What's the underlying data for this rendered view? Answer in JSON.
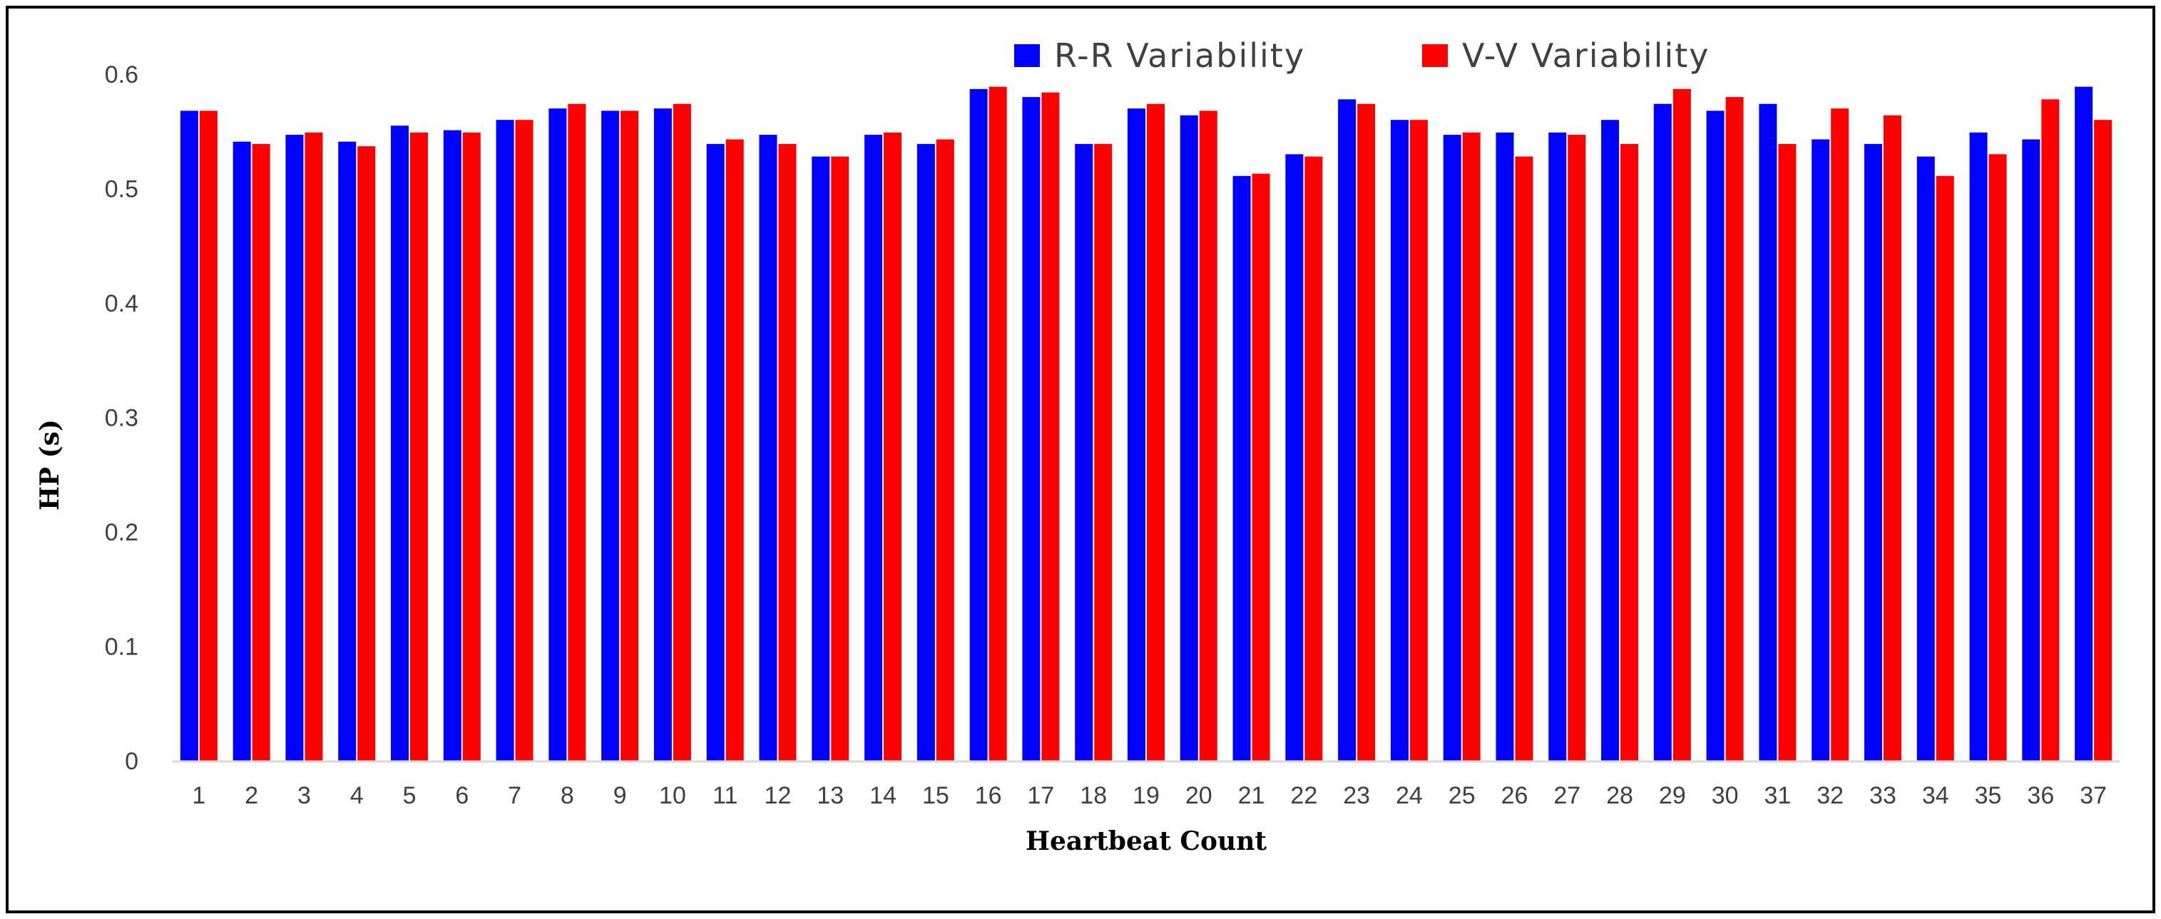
{
  "chart_data": {
    "type": "bar",
    "title": "",
    "xlabel": "Heartbeat Count",
    "ylabel": "HP (s)",
    "ylim": [
      0,
      0.6
    ],
    "yticks": [
      "0",
      "0.1",
      "0.2",
      "0.3",
      "0.4",
      "0.5",
      "0.6"
    ],
    "grid": false,
    "legend_position": "top-right",
    "categories": [
      "1",
      "2",
      "3",
      "4",
      "5",
      "6",
      "7",
      "8",
      "9",
      "10",
      "11",
      "12",
      "13",
      "14",
      "15",
      "16",
      "17",
      "18",
      "19",
      "20",
      "21",
      "22",
      "23",
      "24",
      "25",
      "26",
      "27",
      "28",
      "29",
      "30",
      "31",
      "32",
      "33",
      "34",
      "35",
      "36",
      "37"
    ],
    "series": [
      {
        "name": "R-R Variability",
        "color": "#0000ff",
        "values": [
          0.568,
          0.541,
          0.547,
          0.541,
          0.555,
          0.551,
          0.56,
          0.57,
          0.568,
          0.57,
          0.539,
          0.547,
          0.528,
          0.547,
          0.539,
          0.587,
          0.58,
          0.539,
          0.57,
          0.564,
          0.511,
          0.53,
          0.578,
          0.56,
          0.547,
          0.549,
          0.549,
          0.56,
          0.574,
          0.568,
          0.574,
          0.543,
          0.539,
          0.528,
          0.549,
          0.543,
          0.589
        ]
      },
      {
        "name": "V-V Variability",
        "color": "#ff0000",
        "values": [
          0.568,
          0.539,
          0.549,
          0.537,
          0.549,
          0.549,
          0.56,
          0.574,
          0.568,
          0.574,
          0.543,
          0.539,
          0.528,
          0.549,
          0.543,
          0.589,
          0.584,
          0.539,
          0.574,
          0.568,
          0.513,
          0.528,
          0.574,
          0.56,
          0.549,
          0.528,
          0.547,
          0.539,
          0.587,
          0.58,
          0.539,
          0.57,
          0.564,
          0.511,
          0.53,
          0.578,
          0.56
        ]
      }
    ]
  }
}
